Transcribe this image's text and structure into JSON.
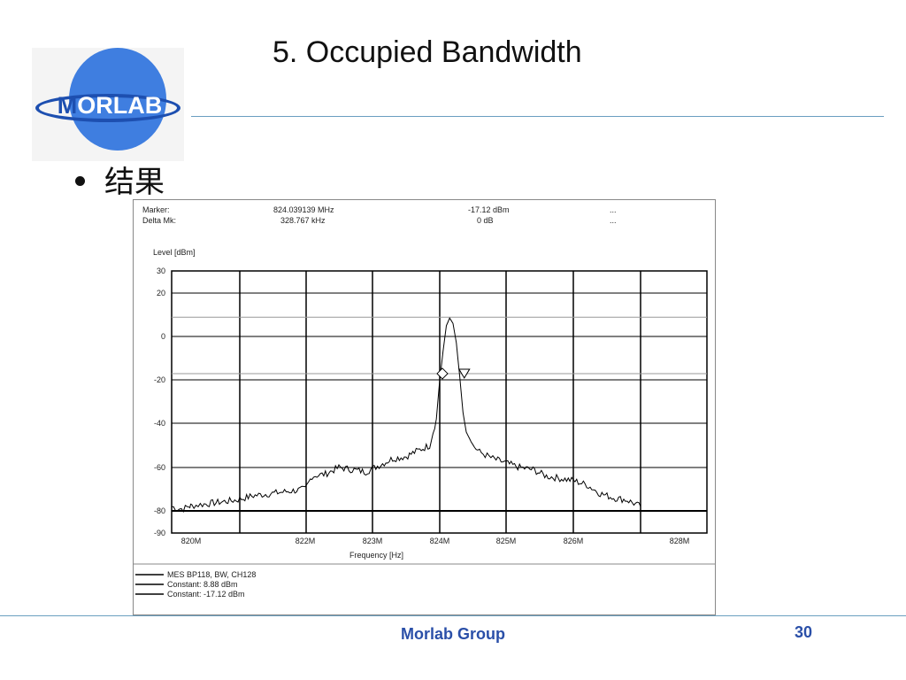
{
  "slide": {
    "title": "5. Occupied Bandwidth",
    "bullet": "结果",
    "logo_text_m": "M",
    "logo_text_rest": "ORLAB",
    "footer": "Morlab Group",
    "page_number": "30"
  },
  "marker_info": {
    "marker_label": "Marker:",
    "marker_freq": "824.039139 MHz",
    "marker_level": "-17.12 dBm",
    "marker_extra": "...",
    "delta_label": "Delta Mk:",
    "delta_freq": "328.767 kHz",
    "delta_level": "0 dB",
    "delta_extra": "..."
  },
  "legend": [
    {
      "label": "MES  BP118, BW, CH128",
      "color": "#000000"
    },
    {
      "label": "Constant: 8.88 dBm",
      "color": "#000000"
    },
    {
      "label": "Constant: -17.12 dBm",
      "color": "#000000"
    }
  ],
  "chart_data": {
    "type": "line",
    "title": "",
    "xlabel": "Frequency [Hz]",
    "ylabel": "Level [dBm]",
    "xlim": [
      819.0,
      827.0
    ],
    "ylim": [
      -90,
      30
    ],
    "y_ticks": [
      30,
      20,
      0,
      -20,
      -40,
      -60,
      -80,
      -90
    ],
    "x_ticks": [
      {
        "value": 820.0,
        "label": "820M"
      },
      {
        "value": 822.0,
        "label": "822M"
      },
      {
        "value": 823.0,
        "label": "823M"
      },
      {
        "value": 824.0,
        "label": "824M"
      },
      {
        "value": 825.0,
        "label": "825M"
      },
      {
        "value": 826.0,
        "label": "826M"
      },
      {
        "value": 828.0,
        "label": "828M"
      }
    ],
    "grid": true,
    "series": [
      {
        "name": "MES  BP118, BW, CH128",
        "x": [
          819.0,
          819.3,
          819.6,
          819.9,
          820.2,
          820.5,
          820.8,
          821.1,
          821.4,
          821.7,
          822.0,
          822.1,
          822.3,
          822.5,
          822.7,
          822.9,
          823.1,
          823.3,
          823.5,
          823.7,
          823.85,
          823.95,
          824.0,
          824.05,
          824.1,
          824.15,
          824.2,
          824.25,
          824.3,
          824.35,
          824.4,
          824.45,
          824.5,
          824.6,
          824.8,
          825.0,
          825.2,
          825.4,
          825.6,
          825.8,
          826.0,
          826.2,
          826.4,
          826.6,
          826.8,
          827.0
        ],
        "y": [
          -78,
          -79,
          -79,
          -78,
          -77,
          -76,
          -75,
          -73,
          -72,
          -71,
          -70,
          -64,
          -63,
          -60,
          -61,
          -62,
          -59,
          -56,
          -55,
          -52,
          -50,
          -38,
          -20,
          -7,
          5,
          8.5,
          6,
          -3,
          -18,
          -35,
          -44,
          -47,
          -50,
          -53,
          -56,
          -58,
          -60,
          -61,
          -64,
          -65,
          -66,
          -68,
          -72,
          -74,
          -75,
          -78
        ]
      }
    ],
    "reference_lines": [
      {
        "name": "Constant: 8.88 dBm",
        "y": 8.88
      },
      {
        "name": "Constant: -17.12 dBm",
        "y": -17.12
      }
    ],
    "markers": [
      {
        "shape": "diamond",
        "x": 824.04,
        "y": -17.12
      },
      {
        "shape": "triangle-down",
        "x": 824.37,
        "y": -17.12
      }
    ]
  }
}
